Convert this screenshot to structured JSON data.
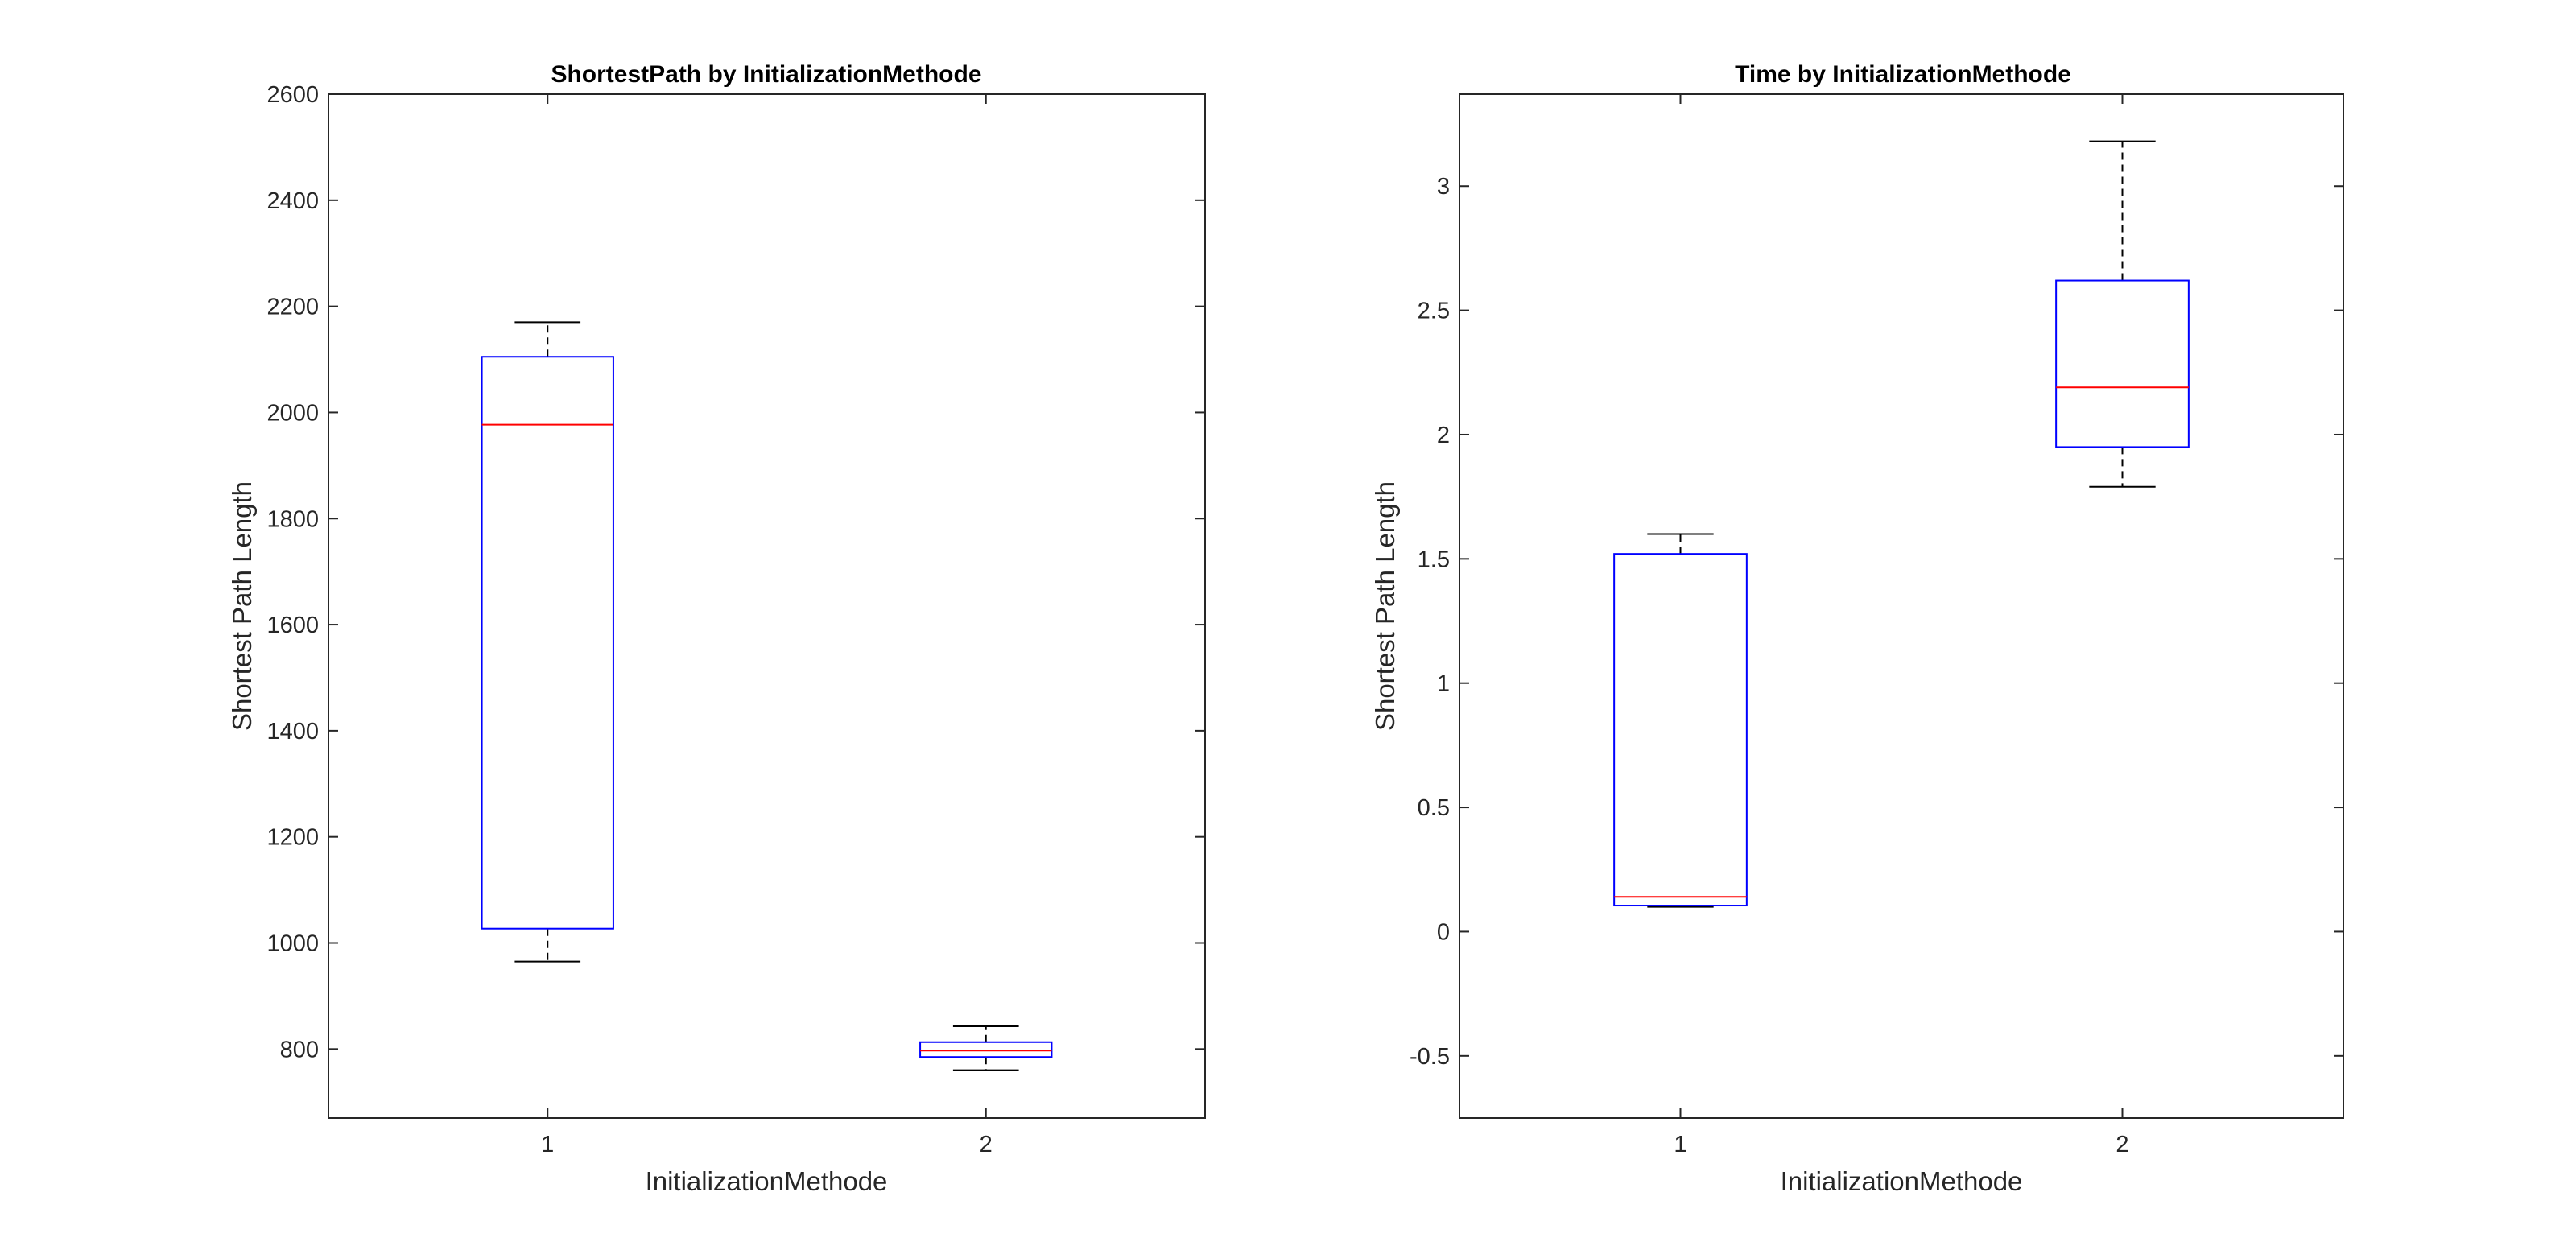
{
  "colors": {
    "box": "#0000ff",
    "median": "#ff0000",
    "whisker": "#000000",
    "axis": "#262626",
    "background": "#ffffff"
  },
  "chart_data": [
    {
      "type": "box",
      "title": "ShortestPath by InitializationMethode",
      "xlabel": "InitializationMethode",
      "ylabel": "Shortest Path Length",
      "categories": [
        "1",
        "2"
      ],
      "xlim": [
        0.5,
        2.5
      ],
      "ylim": [
        670,
        2600
      ],
      "yticks": [
        800,
        1000,
        1200,
        1400,
        1600,
        1800,
        2000,
        2200,
        2400,
        2600
      ],
      "ytick_labels": [
        "800",
        "1000",
        "1200",
        "1400",
        "1600",
        "1800",
        "2000",
        "2200",
        "2400",
        "2600"
      ],
      "grid": false,
      "boxes": [
        {
          "category": "1",
          "min": 965,
          "q1": 1027,
          "median": 1977,
          "q3": 2105,
          "max": 2170
        },
        {
          "category": "2",
          "min": 760,
          "q1": 785,
          "median": 797,
          "q3": 813,
          "max": 843
        }
      ]
    },
    {
      "type": "box",
      "title": "Time by InitializationMethode",
      "xlabel": "InitializationMethode",
      "ylabel": "Shortest Path Length",
      "categories": [
        "1",
        "2"
      ],
      "xlim": [
        0.5,
        2.5
      ],
      "ylim": [
        -0.75,
        3.37
      ],
      "yticks": [
        -0.5,
        0,
        0.5,
        1,
        1.5,
        2,
        2.5,
        3
      ],
      "ytick_labels": [
        "-0.5",
        "0",
        "0.5",
        "1",
        "1.5",
        "2",
        "2.5",
        "3"
      ],
      "grid": false,
      "boxes": [
        {
          "category": "1",
          "min": 0.1,
          "q1": 0.105,
          "median": 0.14,
          "q3": 1.52,
          "max": 1.6
        },
        {
          "category": "2",
          "min": 1.79,
          "q1": 1.95,
          "median": 2.19,
          "q3": 2.62,
          "max": 3.18
        }
      ]
    }
  ]
}
